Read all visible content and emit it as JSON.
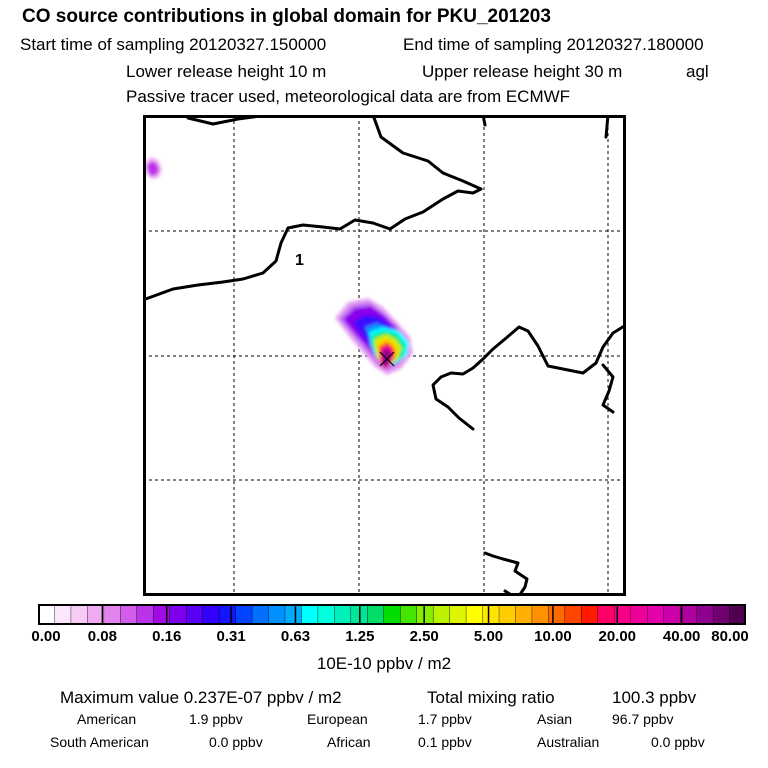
{
  "header": {
    "title": "CO  source contributions in global domain for PKU_201203",
    "start_label": "Start time of sampling 20120327.150000",
    "end_label": "End time of sampling 20120327.180000",
    "lower_height": "Lower release height   10 m",
    "upper_height": "Upper release height   30 m",
    "height_unit": "agl",
    "tracer_note": "Passive tracer used, meteorological data are from ECMWF"
  },
  "map": {
    "annotation": "1",
    "plume": {
      "location": "north China, west of Bohai Gulf",
      "max_value": "0.237E-07 ppbv / m2"
    }
  },
  "colorbar": {
    "tick_labels": [
      "0.00",
      "0.08",
      "0.16",
      "0.31",
      "0.63",
      "1.25",
      "2.50",
      "5.00",
      "10.00",
      "20.00",
      "40.00",
      "80.00"
    ],
    "unit": "10E-10 ppbv / m2",
    "colors": [
      "#ffffff",
      "#fbe6fb",
      "#f6ccf6",
      "#efaaf2",
      "#e383ee",
      "#d35cea",
      "#bb33e8",
      "#a20ae6",
      "#7c00ee",
      "#5a00f4",
      "#3200ff",
      "#1414ff",
      "#0044ff",
      "#0070ff",
      "#0090ff",
      "#00acff",
      "#00ffff",
      "#00ffdd",
      "#00f0bb",
      "#00e699",
      "#00dd66",
      "#00dd00",
      "#44e600",
      "#88ee00",
      "#bbf200",
      "#ddf500",
      "#ffff00",
      "#ffe600",
      "#ffcc00",
      "#ffb000",
      "#ff9000",
      "#ff6a00",
      "#ff4400",
      "#ff1a00",
      "#ff0066",
      "#f70088",
      "#ee0099",
      "#e400aa",
      "#cc00aa",
      "#b000a0",
      "#900090",
      "#700070",
      "#500050"
    ]
  },
  "summary": {
    "max_label": "Maximum value  0.237E-07 ppbv / m2",
    "total_label": "Total mixing ratio",
    "total_value": "100.3 ppbv",
    "regions": [
      {
        "name": "American",
        "value": "1.9 ppbv"
      },
      {
        "name": "European",
        "value": "1.7 ppbv"
      },
      {
        "name": "Asian",
        "value": "96.7 ppbv"
      },
      {
        "name": "South American",
        "value": "0.0 ppbv"
      },
      {
        "name": "African",
        "value": "0.1 ppbv"
      },
      {
        "name": "Australian",
        "value": "0.0 ppbv"
      }
    ]
  }
}
